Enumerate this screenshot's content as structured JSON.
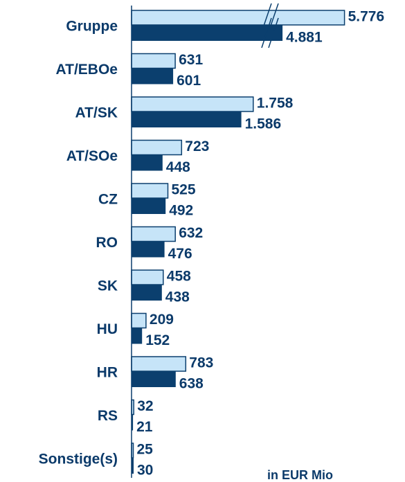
{
  "chart_data": {
    "type": "bar",
    "orientation": "horizontal",
    "categories": [
      "Gruppe",
      "AT/EBOe",
      "AT/SK",
      "AT/SOe",
      "CZ",
      "RO",
      "SK",
      "HU",
      "HR",
      "RS",
      "Sonstige(s)"
    ],
    "series": [
      {
        "color": "#c6e4f8",
        "values": [
          5776,
          631,
          1758,
          723,
          525,
          632,
          458,
          209,
          783,
          32,
          25
        ],
        "value_labels": [
          "5.776",
          "631",
          "1.758",
          "723",
          "525",
          "632",
          "458",
          "209",
          "783",
          "32",
          "25"
        ]
      },
      {
        "color": "#0b3f6e",
        "values": [
          4881,
          601,
          1586,
          448,
          492,
          476,
          438,
          152,
          638,
          21,
          30
        ],
        "value_labels": [
          "4.881",
          "601",
          "1.586",
          "448",
          "492",
          "476",
          "438",
          "152",
          "638",
          "21",
          "30"
        ]
      }
    ],
    "note": "in EUR Mio"
  }
}
